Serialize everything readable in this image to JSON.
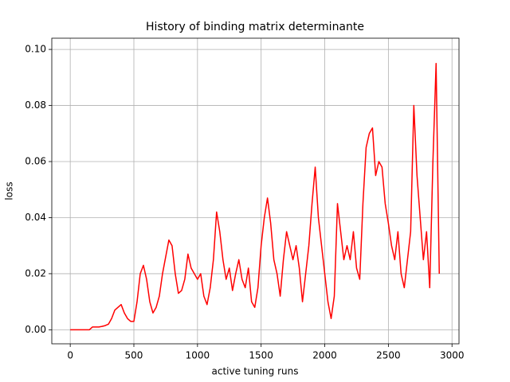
{
  "chart_data": {
    "type": "line",
    "title": "History of binding matrix determinante",
    "x_label": "active tuning runs",
    "y_label": "loss",
    "x": [
      0,
      25,
      50,
      75,
      100,
      125,
      150,
      175,
      200,
      225,
      250,
      275,
      300,
      325,
      350,
      375,
      400,
      425,
      450,
      475,
      500,
      525,
      550,
      575,
      600,
      625,
      650,
      675,
      700,
      725,
      750,
      775,
      800,
      825,
      850,
      875,
      900,
      925,
      950,
      975,
      1000,
      1025,
      1050,
      1075,
      1100,
      1125,
      1150,
      1175,
      1200,
      1225,
      1250,
      1275,
      1300,
      1325,
      1350,
      1375,
      1400,
      1425,
      1450,
      1475,
      1500,
      1525,
      1550,
      1575,
      1600,
      1625,
      1650,
      1675,
      1700,
      1725,
      1750,
      1775,
      1800,
      1825,
      1850,
      1875,
      1900,
      1925,
      1950,
      1975,
      2000,
      2025,
      2050,
      2075,
      2100,
      2125,
      2150,
      2175,
      2200,
      2225,
      2250,
      2275,
      2300,
      2325,
      2350,
      2375,
      2400,
      2425,
      2450,
      2475,
      2500,
      2525,
      2550,
      2575,
      2600,
      2625,
      2650,
      2675,
      2700,
      2725,
      2750,
      2775,
      2800,
      2825,
      2850,
      2875,
      2900
    ],
    "series": [
      {
        "name": "loss",
        "color": "#ff0000",
        "values": [
          0,
          0,
          0,
          0,
          0,
          0,
          0,
          0.001,
          0.001,
          0.001,
          0.0012,
          0.0015,
          0.002,
          0.004,
          0.007,
          0.008,
          0.009,
          0.006,
          0.004,
          0.003,
          0.003,
          0.01,
          0.02,
          0.023,
          0.018,
          0.01,
          0.006,
          0.008,
          0.012,
          0.02,
          0.026,
          0.032,
          0.03,
          0.02,
          0.013,
          0.014,
          0.018,
          0.027,
          0.022,
          0.02,
          0.018,
          0.02,
          0.012,
          0.009,
          0.015,
          0.025,
          0.042,
          0.035,
          0.025,
          0.018,
          0.022,
          0.014,
          0.02,
          0.025,
          0.018,
          0.015,
          0.022,
          0.01,
          0.008,
          0.015,
          0.03,
          0.04,
          0.047,
          0.038,
          0.025,
          0.02,
          0.012,
          0.025,
          0.035,
          0.03,
          0.025,
          0.03,
          0.022,
          0.01,
          0.02,
          0.03,
          0.045,
          0.058,
          0.04,
          0.03,
          0.02,
          0.01,
          0.004,
          0.012,
          0.045,
          0.035,
          0.025,
          0.03,
          0.025,
          0.035,
          0.022,
          0.018,
          0.045,
          0.065,
          0.07,
          0.072,
          0.055,
          0.06,
          0.058,
          0.045,
          0.038,
          0.03,
          0.025,
          0.035,
          0.02,
          0.015,
          0.025,
          0.035,
          0.08,
          0.055,
          0.04,
          0.025,
          0.035,
          0.015,
          0.06,
          0.095,
          0.02
        ]
      }
    ],
    "xlim": [
      -145,
      3055
    ],
    "ylim": [
      -0.005,
      0.104
    ],
    "xticks": [
      0,
      500,
      1000,
      1500,
      2000,
      2500,
      3000
    ],
    "yticks": [
      {
        "value": 0,
        "label": "0.00"
      },
      {
        "value": 0.02,
        "label": "0.02"
      },
      {
        "value": 0.04,
        "label": "0.04"
      },
      {
        "value": 0.06,
        "label": "0.06"
      },
      {
        "value": 0.08,
        "label": "0.08"
      },
      {
        "value": 0.1,
        "label": "0.10"
      }
    ],
    "grid": true
  }
}
